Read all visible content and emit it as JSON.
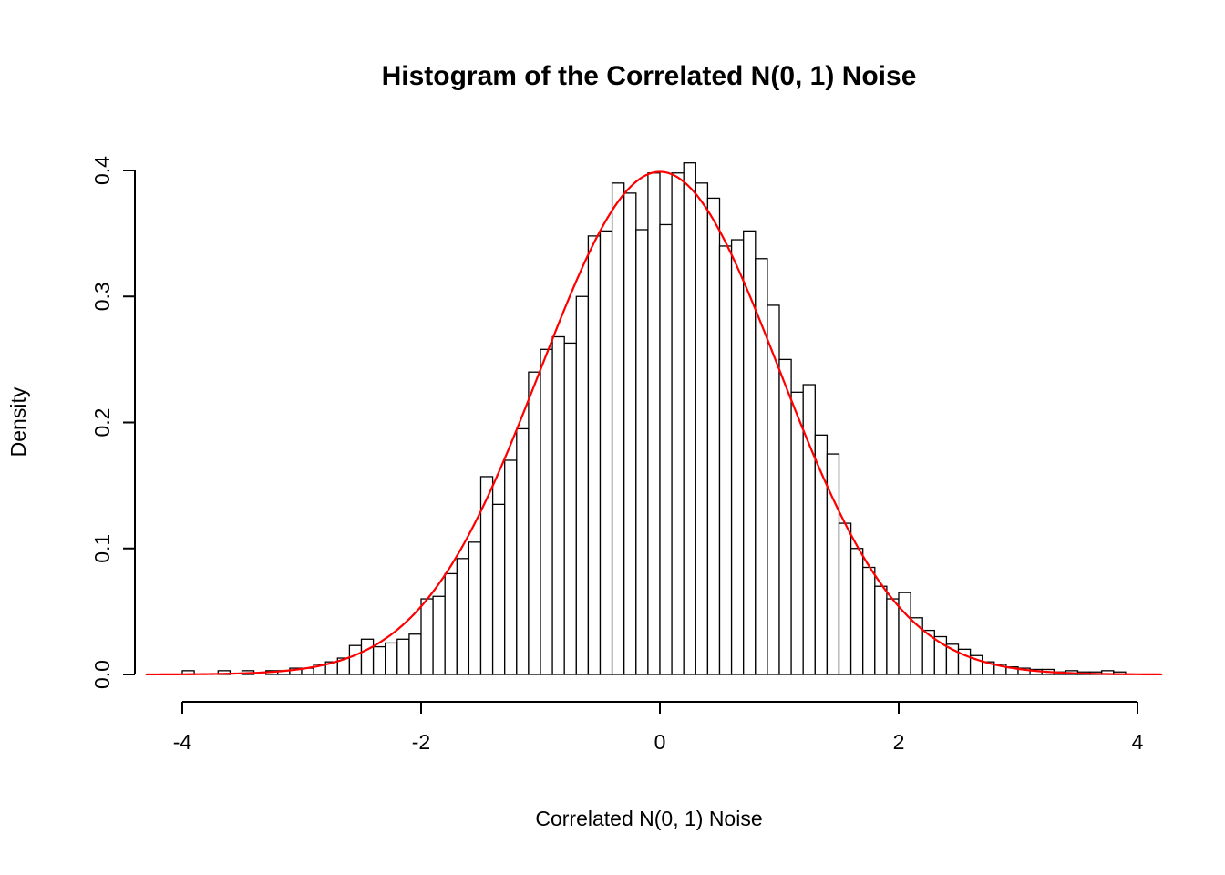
{
  "figure": {
    "title": "Histogram of the Correlated N(0, 1) Noise",
    "xlabel": "Correlated N(0, 1) Noise",
    "ylabel": "Density"
  },
  "chart_data": {
    "type": "bar",
    "subtype": "histogram-with-density-curve",
    "title": "Histogram of the Correlated N(0, 1) Noise",
    "xlabel": "Correlated N(0, 1) Noise",
    "ylabel": "Density",
    "xlim": [
      -4,
      4
    ],
    "ylim": [
      0,
      0.4
    ],
    "x_ticks": [
      -4,
      -2,
      0,
      2,
      4
    ],
    "x_tick_labels": [
      "-4",
      "-2",
      "0",
      "2",
      "4"
    ],
    "y_ticks": [
      0,
      0.1,
      0.2,
      0.3,
      0.4
    ],
    "y_tick_labels": [
      "0.0",
      "0.1",
      "0.2",
      "0.3",
      "0.4"
    ],
    "grid": false,
    "legend": null,
    "bin_start": -4.0,
    "bin_width": 0.1,
    "bar_heights": [
      0.003,
      0,
      0,
      0.003,
      0,
      0.003,
      0,
      0.003,
      0.003,
      0.005,
      0.005,
      0.008,
      0.01,
      0.013,
      0.023,
      0.028,
      0.022,
      0.025,
      0.028,
      0.032,
      0.06,
      0.062,
      0.08,
      0.092,
      0.105,
      0.157,
      0.135,
      0.17,
      0.195,
      0.24,
      0.258,
      0.268,
      0.263,
      0.3,
      0.348,
      0.352,
      0.39,
      0.382,
      0.353,
      0.398,
      0.357,
      0.398,
      0.406,
      0.39,
      0.378,
      0.34,
      0.345,
      0.352,
      0.33,
      0.293,
      0.25,
      0.224,
      0.23,
      0.19,
      0.175,
      0.12,
      0.1,
      0.085,
      0.07,
      0.06,
      0.065,
      0.045,
      0.035,
      0.03,
      0.024,
      0.02,
      0.015,
      0.01,
      0.008,
      0.006,
      0.005,
      0.004,
      0.004,
      0.002,
      0.003,
      0.002,
      0.002,
      0.003,
      0.002
    ],
    "bar_fill": "#FFFFFF",
    "bar_stroke": "#000000",
    "axis_color": "#000000",
    "overlay_curve": {
      "name": "standard-normal-density",
      "mean": 0,
      "sd": 1,
      "color": "#FF0000",
      "x_range": [
        -4.3,
        4.2
      ]
    }
  }
}
